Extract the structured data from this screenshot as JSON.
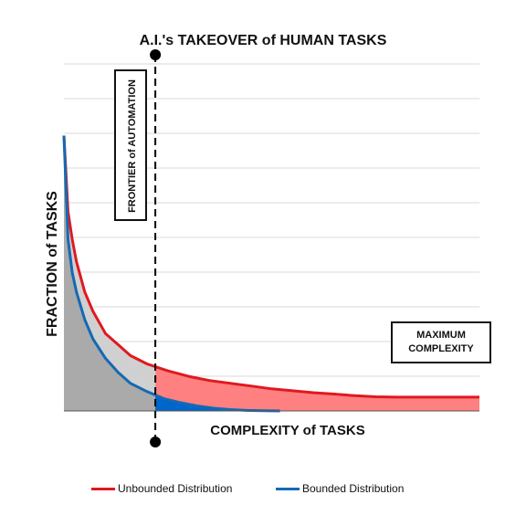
{
  "title": "A.I.'s TAKEOVER of HUMAN TASKS",
  "chart_data": {
    "type": "area",
    "xlabel": "COMPLEXITY  of TASKS",
    "ylabel": "FRACTION of TASKS",
    "grid": true,
    "legend_position": "bottom",
    "x_range": [
      0,
      1
    ],
    "y_range": [
      0,
      1
    ],
    "series": [
      {
        "name": "Unbounded Distribution",
        "color": "#e0191f",
        "fill": "#ff8080",
        "x": [
          0.0,
          0.01,
          0.02,
          0.03,
          0.05,
          0.07,
          0.1,
          0.13,
          0.16,
          0.2,
          0.25,
          0.3,
          0.35,
          0.4,
          0.45,
          0.5,
          0.55,
          0.6,
          0.65,
          0.7,
          0.75,
          0.8,
          0.85,
          0.9,
          0.95,
          1.0
        ],
        "values": [
          0.995,
          0.72,
          0.62,
          0.54,
          0.43,
          0.36,
          0.28,
          0.24,
          0.2,
          0.17,
          0.145,
          0.125,
          0.11,
          0.1,
          0.09,
          0.08,
          0.073,
          0.066,
          0.061,
          0.055,
          0.051,
          0.05,
          0.05,
          0.05,
          0.05,
          0.05
        ]
      },
      {
        "name": "Bounded Distribution",
        "color": "#1469b3",
        "fill": "#0066cc",
        "x": [
          0.0,
          0.01,
          0.02,
          0.03,
          0.05,
          0.07,
          0.1,
          0.13,
          0.16,
          0.2,
          0.24,
          0.28,
          0.32,
          0.36,
          0.4,
          0.44,
          0.48,
          0.52
        ],
        "values": [
          0.995,
          0.62,
          0.5,
          0.43,
          0.33,
          0.26,
          0.19,
          0.14,
          0.1,
          0.07,
          0.045,
          0.03,
          0.018,
          0.01,
          0.005,
          0.002,
          0.001,
          0.0
        ]
      }
    ],
    "annotations": [
      {
        "label": "FRONTIER of AUTOMATION",
        "x": 0.22
      },
      {
        "label_lines": [
          "MAXIMUM",
          "COMPLEXITY"
        ]
      }
    ],
    "frontier_x": 0.22
  },
  "legend": {
    "unbounded": "Unbounded Distribution",
    "bounded": "Bounded Distribution"
  },
  "colors": {
    "gray_fill": "#aaaaaa",
    "light_fill": "#d0d0d0",
    "grid": "#d9d9d9",
    "axis": "#555555"
  }
}
